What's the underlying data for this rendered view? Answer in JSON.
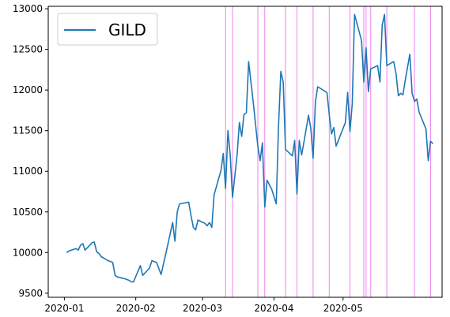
{
  "chart_data": {
    "type": "line",
    "series": [
      {
        "name": "GILD",
        "color": "#1f77b4",
        "points": [
          [
            "2020-01-02",
            10000
          ],
          [
            "2020-01-03",
            10020
          ],
          [
            "2020-01-06",
            10050
          ],
          [
            "2020-01-07",
            10030
          ],
          [
            "2020-01-08",
            10090
          ],
          [
            "2020-01-09",
            10110
          ],
          [
            "2020-01-10",
            10030
          ],
          [
            "2020-01-13",
            10120
          ],
          [
            "2020-01-14",
            10130
          ],
          [
            "2020-01-15",
            10010
          ],
          [
            "2020-01-16",
            9990
          ],
          [
            "2020-01-17",
            9950
          ],
          [
            "2020-01-20",
            9900
          ],
          [
            "2020-01-21",
            9890
          ],
          [
            "2020-01-22",
            9880
          ],
          [
            "2020-01-23",
            9720
          ],
          [
            "2020-01-24",
            9700
          ],
          [
            "2020-01-27",
            9680
          ],
          [
            "2020-01-29",
            9660
          ],
          [
            "2020-01-30",
            9640
          ],
          [
            "2020-01-31",
            9640
          ],
          [
            "2020-02-03",
            9840
          ],
          [
            "2020-02-04",
            9720
          ],
          [
            "2020-02-06",
            9780
          ],
          [
            "2020-02-07",
            9810
          ],
          [
            "2020-02-08",
            9900
          ],
          [
            "2020-02-10",
            9880
          ],
          [
            "2020-02-12",
            9730
          ],
          [
            "2020-02-14",
            9980
          ],
          [
            "2020-02-17",
            10370
          ],
          [
            "2020-02-18",
            10140
          ],
          [
            "2020-02-19",
            10500
          ],
          [
            "2020-02-20",
            10600
          ],
          [
            "2020-02-24",
            10620
          ],
          [
            "2020-02-25",
            10450
          ],
          [
            "2020-02-26",
            10310
          ],
          [
            "2020-02-27",
            10280
          ],
          [
            "2020-02-28",
            10400
          ],
          [
            "2020-03-02",
            10360
          ],
          [
            "2020-03-03",
            10330
          ],
          [
            "2020-03-04",
            10370
          ],
          [
            "2020-03-05",
            10310
          ],
          [
            "2020-03-06",
            10710
          ],
          [
            "2020-03-09",
            11010
          ],
          [
            "2020-03-10",
            11220
          ],
          [
            "2020-03-11",
            10790
          ],
          [
            "2020-03-12",
            11500
          ],
          [
            "2020-03-13",
            11200
          ],
          [
            "2020-03-14",
            10680
          ],
          [
            "2020-03-16",
            11200
          ],
          [
            "2020-03-17",
            11600
          ],
          [
            "2020-03-18",
            11430
          ],
          [
            "2020-03-19",
            11700
          ],
          [
            "2020-03-20",
            11720
          ],
          [
            "2020-03-21",
            12350
          ],
          [
            "2020-03-23",
            11850
          ],
          [
            "2020-03-25",
            11310
          ],
          [
            "2020-03-26",
            11130
          ],
          [
            "2020-03-27",
            11350
          ],
          [
            "2020-03-28",
            10560
          ],
          [
            "2020-03-29",
            10890
          ],
          [
            "2020-03-31",
            10780
          ],
          [
            "2020-04-02",
            10600
          ],
          [
            "2020-04-03",
            11560
          ],
          [
            "2020-04-04",
            12230
          ],
          [
            "2020-04-05",
            12100
          ],
          [
            "2020-04-06",
            11270
          ],
          [
            "2020-04-09",
            11190
          ],
          [
            "2020-04-10",
            11380
          ],
          [
            "2020-04-11",
            10720
          ],
          [
            "2020-04-12",
            11380
          ],
          [
            "2020-04-13",
            11200
          ],
          [
            "2020-04-14",
            11360
          ],
          [
            "2020-04-16",
            11690
          ],
          [
            "2020-04-17",
            11530
          ],
          [
            "2020-04-18",
            11160
          ],
          [
            "2020-04-19",
            11850
          ],
          [
            "2020-04-20",
            12040
          ],
          [
            "2020-04-24",
            11970
          ],
          [
            "2020-04-25",
            11700
          ],
          [
            "2020-04-26",
            11460
          ],
          [
            "2020-04-27",
            11540
          ],
          [
            "2020-04-28",
            11310
          ],
          [
            "2020-05-02",
            11600
          ],
          [
            "2020-05-03",
            11970
          ],
          [
            "2020-05-04",
            11490
          ],
          [
            "2020-05-05",
            11830
          ],
          [
            "2020-05-06",
            12930
          ],
          [
            "2020-05-09",
            12610
          ],
          [
            "2020-05-10",
            12100
          ],
          [
            "2020-05-11",
            12520
          ],
          [
            "2020-05-12",
            11980
          ],
          [
            "2020-05-13",
            12260
          ],
          [
            "2020-05-16",
            12300
          ],
          [
            "2020-05-17",
            12100
          ],
          [
            "2020-05-18",
            12800
          ],
          [
            "2020-05-19",
            12930
          ],
          [
            "2020-05-20",
            12300
          ],
          [
            "2020-05-23",
            12350
          ],
          [
            "2020-05-24",
            12200
          ],
          [
            "2020-05-25",
            11930
          ],
          [
            "2020-05-26",
            11960
          ],
          [
            "2020-05-27",
            11940
          ],
          [
            "2020-05-28",
            12120
          ],
          [
            "2020-05-30",
            12440
          ],
          [
            "2020-05-31",
            11960
          ],
          [
            "2020-06-01",
            11860
          ],
          [
            "2020-06-02",
            11890
          ],
          [
            "2020-06-03",
            11730
          ],
          [
            "2020-06-06",
            11520
          ],
          [
            "2020-06-07",
            11130
          ],
          [
            "2020-06-08",
            11370
          ],
          [
            "2020-06-09",
            11340
          ]
        ]
      }
    ],
    "vertical_lines": {
      "color": "#ee82ee",
      "dates": [
        "2020-03-11",
        "2020-03-14",
        "2020-03-25",
        "2020-03-28",
        "2020-04-06",
        "2020-04-11",
        "2020-04-18",
        "2020-04-25",
        "2020-05-04",
        "2020-05-10",
        "2020-05-11",
        "2020-05-13",
        "2020-05-20",
        "2020-06-01",
        "2020-06-08"
      ]
    },
    "x_range": [
      "2019-12-25",
      "2020-06-13"
    ],
    "ylim": [
      9450,
      13030
    ],
    "x_ticks": [
      {
        "date": "2020-01-01",
        "label": "2020-01"
      },
      {
        "date": "2020-02-01",
        "label": "2020-02"
      },
      {
        "date": "2020-03-01",
        "label": "2020-03"
      },
      {
        "date": "2020-04-01",
        "label": "2020-04"
      },
      {
        "date": "2020-05-01",
        "label": "2020-05"
      }
    ],
    "y_ticks": [
      9500,
      10000,
      10500,
      11000,
      11500,
      12000,
      12500,
      13000
    ],
    "legend": {
      "location": "upper-left",
      "labels": [
        "GILD"
      ]
    },
    "grid": false
  }
}
